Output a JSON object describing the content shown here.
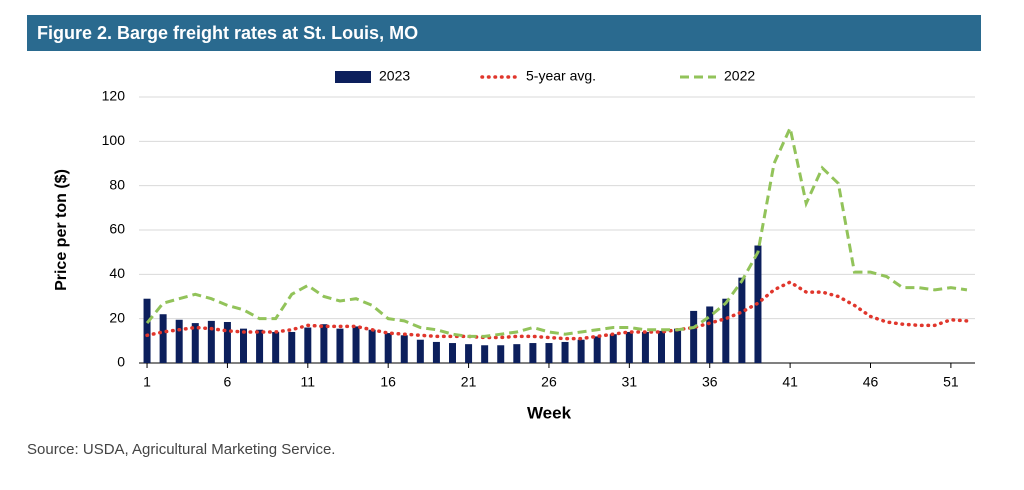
{
  "chart_data": {
    "type": "bar-line",
    "title": "Figure 2. Barge freight rates at St. Louis, MO",
    "x": [
      1,
      2,
      3,
      4,
      5,
      6,
      7,
      8,
      9,
      10,
      11,
      12,
      13,
      14,
      15,
      16,
      17,
      18,
      19,
      20,
      21,
      22,
      23,
      24,
      25,
      26,
      27,
      28,
      29,
      30,
      31,
      32,
      33,
      34,
      35,
      36,
      37,
      38,
      39,
      40,
      41,
      42,
      43,
      44,
      45,
      46,
      47,
      48,
      49,
      50,
      51,
      52
    ],
    "series": [
      {
        "name": "2023",
        "kind": "bar",
        "color": "#0c1f5c",
        "values": [
          29,
          22,
          19.5,
          18,
          19,
          18.5,
          15.5,
          15,
          14,
          14,
          16,
          17.5,
          15.5,
          16.5,
          15,
          13.5,
          12.5,
          10.5,
          9.5,
          9,
          8.5,
          8,
          8,
          8.5,
          9,
          9,
          9.5,
          10.5,
          12,
          13,
          14,
          14,
          14.5,
          15.5,
          23.5,
          25.5,
          29,
          38.5,
          53,
          null,
          null,
          null,
          null,
          null,
          null,
          null,
          null,
          null,
          null,
          null,
          null,
          null
        ]
      },
      {
        "name": "5-year avg.",
        "kind": "dotted",
        "color": "#e0362c",
        "values": [
          12.5,
          14,
          15,
          16,
          15.5,
          14.5,
          14,
          14,
          14,
          15,
          17,
          16.5,
          16.5,
          16.5,
          15,
          13.5,
          13,
          12.5,
          12,
          12,
          12,
          11.5,
          11.5,
          12,
          12,
          11.5,
          11,
          11,
          12,
          13,
          14,
          14,
          14,
          15,
          16,
          18,
          20,
          23,
          27,
          33,
          36.5,
          32,
          32,
          30,
          26,
          21,
          18.5,
          17.5,
          17,
          17,
          19.5,
          19
        ]
      },
      {
        "name": "2022",
        "kind": "dashed",
        "color": "#92c35a",
        "values": [
          18,
          27,
          29,
          31,
          29,
          26,
          24,
          20,
          20,
          31,
          35,
          30,
          28,
          29,
          26,
          20,
          19,
          16,
          15,
          13,
          12,
          12,
          13,
          14,
          16,
          14,
          13,
          14,
          15,
          16,
          16,
          15,
          15,
          15,
          16,
          21,
          27,
          37,
          50,
          90,
          106,
          72,
          88,
          81,
          41,
          41,
          39,
          34,
          34,
          33,
          34,
          33
        ]
      }
    ],
    "xlabel": "Week",
    "ylabel": "Price per ton ($)",
    "xlim": [
      0.5,
      52.5
    ],
    "xticks": [
      1,
      6,
      11,
      16,
      21,
      26,
      31,
      36,
      41,
      46,
      51
    ],
    "ylim": [
      0,
      120
    ],
    "yticks": [
      0,
      20,
      40,
      60,
      80,
      100,
      120
    ],
    "grid": true,
    "legend": "top"
  },
  "source": "Source: USDA, Agricultural Marketing Service."
}
